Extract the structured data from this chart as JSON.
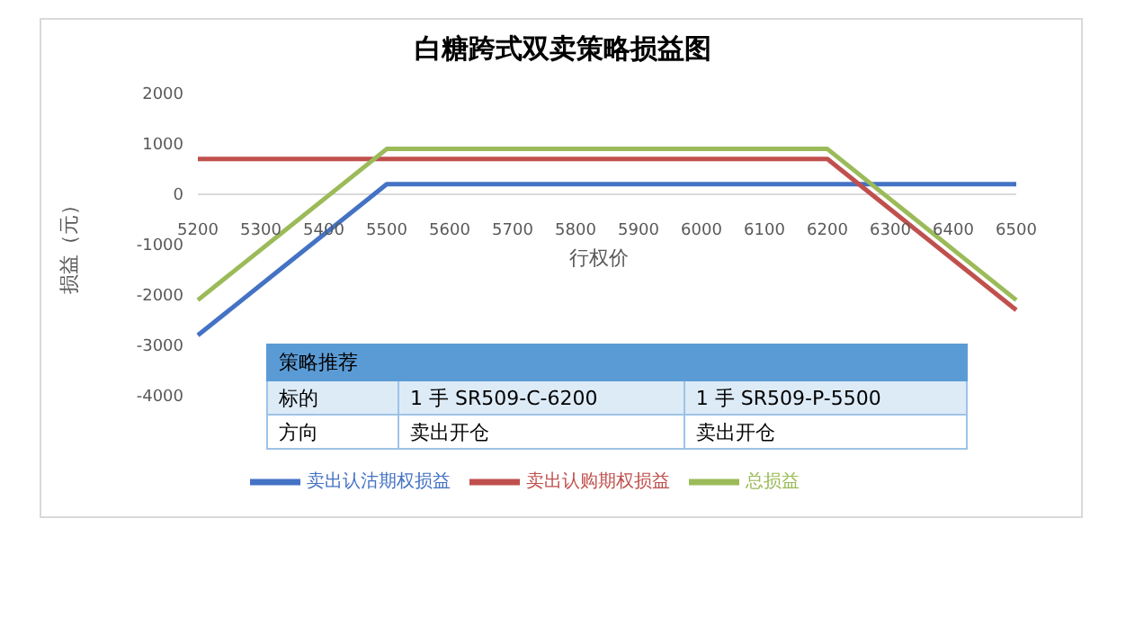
{
  "chart_data": {
    "type": "line",
    "title": "白糖跨式双卖策略损益图",
    "xlabel": "行权价",
    "ylabel": "损益（元）",
    "categories": [
      "5200",
      "5300",
      "5400",
      "5500",
      "5600",
      "5700",
      "5800",
      "5900",
      "6000",
      "6100",
      "6200",
      "6300",
      "6400",
      "6500"
    ],
    "series": [
      {
        "name": "卖出认沽期权损益",
        "color": "#4472c4",
        "values": [
          -2800,
          -1800,
          -800,
          200,
          200,
          200,
          200,
          200,
          200,
          200,
          200,
          200,
          200,
          200
        ]
      },
      {
        "name": "卖出认购期权损益",
        "color": "#c0504d",
        "values": [
          700,
          700,
          700,
          700,
          700,
          700,
          700,
          700,
          700,
          700,
          700,
          -300,
          -1300,
          -2300
        ]
      },
      {
        "name": "总损益",
        "color": "#9bbb59",
        "values": [
          -2100,
          -1100,
          -100,
          900,
          900,
          900,
          900,
          900,
          900,
          900,
          900,
          -100,
          -1100,
          -2100
        ]
      }
    ],
    "ylim": [
      -4000,
      2000
    ],
    "yticks": [
      -4000,
      -3000,
      -2000,
      -1000,
      0,
      1000,
      2000
    ],
    "grid": false,
    "legend": "bottom",
    "marker": "none",
    "line_style": "solid",
    "annotations": [
      "策略推荐",
      "标的",
      "1 手 SR509-C-6200",
      "1 手 SR509-P-5500",
      "方向",
      "卖出开仓",
      "卖出开仓"
    ]
  }
}
